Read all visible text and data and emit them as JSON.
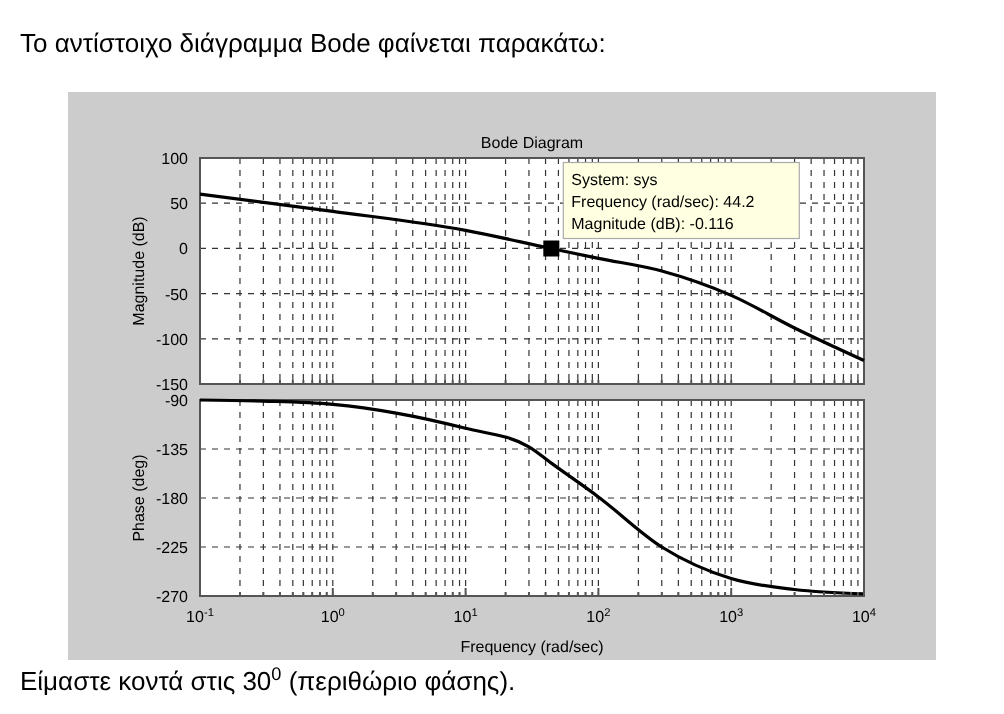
{
  "chart_data": [
    {
      "type": "line",
      "title": "Bode Diagram",
      "ylabel": "Magnitude (dB)",
      "log": "x",
      "grid": true,
      "line_style": "solid",
      "tick_labels": "y",
      "annotations": [
        "Το αντίστοιχο διάγραμμα Bode φαίνεται παρακάτω:",
        {
          "text": "System: sys\nFrequency (rad/sec): 44.2\nMagnitude (dB): -0.116",
          "x": 44.2,
          "y": -0.116
        }
      ],
      "xlim": [
        0.1,
        10000
      ],
      "xticks": [
        {
          "value": 0.1,
          "label": null
        },
        {
          "value": 0.2,
          "label": null
        },
        {
          "value": 0.3,
          "label": null
        },
        {
          "value": 0.4,
          "label": null
        },
        {
          "value": 0.5,
          "label": null
        },
        {
          "value": 0.6,
          "label": null
        },
        {
          "value": 0.7,
          "label": null
        },
        {
          "value": 0.8,
          "label": null
        },
        {
          "value": 0.9,
          "label": null
        },
        {
          "value": 1,
          "label": null
        },
        {
          "value": 2,
          "label": null
        },
        {
          "value": 3,
          "label": null
        },
        {
          "value": 4,
          "label": null
        },
        {
          "value": 5,
          "label": null
        },
        {
          "value": 6,
          "label": null
        },
        {
          "value": 7,
          "label": null
        },
        {
          "value": 8,
          "label": null
        },
        {
          "value": 9,
          "label": null
        },
        {
          "value": 10,
          "label": null
        },
        {
          "value": 20,
          "label": null
        },
        {
          "value": 30,
          "label": null
        },
        {
          "value": 40,
          "label": null
        },
        {
          "value": 50,
          "label": null
        },
        {
          "value": 60,
          "label": null
        },
        {
          "value": 70,
          "label": null
        },
        {
          "value": 80,
          "label": null
        },
        {
          "value": 90,
          "label": null
        },
        {
          "value": 100,
          "label": null
        },
        {
          "value": 200,
          "label": null
        },
        {
          "value": 300,
          "label": null
        },
        {
          "value": 400,
          "label": null
        },
        {
          "value": 500,
          "label": null
        },
        {
          "value": 600,
          "label": null
        },
        {
          "value": 700,
          "label": null
        },
        {
          "value": 800,
          "label": null
        },
        {
          "value": 900,
          "label": null
        },
        {
          "value": 1000,
          "label": null
        },
        {
          "value": 2000,
          "label": null
        },
        {
          "value": 3000,
          "label": null
        },
        {
          "value": 4000,
          "label": null
        },
        {
          "value": 5000,
          "label": null
        },
        {
          "value": 6000,
          "label": null
        },
        {
          "value": 7000,
          "label": null
        },
        {
          "value": 8000,
          "label": null
        },
        {
          "value": 9000,
          "label": null
        },
        {
          "value": 10000,
          "label": null
        }
      ],
      "ylim": [
        -150,
        100
      ],
      "yticks": [
        -150,
        -100,
        -50,
        0,
        50,
        100
      ],
      "series": [
        {
          "color": "#000000",
          "x": [
            0.1,
            1,
            10,
            44.2,
            100,
            300,
            1000,
            3000,
            10000
          ],
          "values": [
            60,
            41,
            20,
            -0.116,
            -11,
            -25,
            -52,
            -88,
            -124
          ]
        },
        {
          "type": "scatter",
          "marker": "square",
          "color": "#000000",
          "x": [
            44.2
          ],
          "values": [
            -0.116
          ]
        }
      ]
    },
    {
      "type": "line",
      "xlabel": "Frequency (rad/sec)",
      "ylabel": "Phase (deg)",
      "log": "x",
      "grid": true,
      "line_style": "solid",
      "annotations": [
        "Είμαστε κοντά στις 30$^{0}$ (περιθώριο φάσης)."
      ],
      "xlim": [
        0.1,
        10000
      ],
      "xticks": [
        {
          "value": 0.1,
          "label": "10$^{-1}$"
        },
        {
          "value": 0.2,
          "label": null
        },
        {
          "value": 0.3,
          "label": null
        },
        {
          "value": 0.4,
          "label": null
        },
        {
          "value": 0.5,
          "label": null
        },
        {
          "value": 0.6,
          "label": null
        },
        {
          "value": 0.7,
          "label": null
        },
        {
          "value": 0.8,
          "label": null
        },
        {
          "value": 0.9,
          "label": null
        },
        {
          "value": 1,
          "label": "10$^{0}$"
        },
        {
          "value": 2,
          "label": null
        },
        {
          "value": 3,
          "label": null
        },
        {
          "value": 4,
          "label": null
        },
        {
          "value": 5,
          "label": null
        },
        {
          "value": 6,
          "label": null
        },
        {
          "value": 7,
          "label": null
        },
        {
          "value": 8,
          "label": null
        },
        {
          "value": 9,
          "label": null
        },
        {
          "value": 10,
          "label": "10$^{1}$"
        },
        {
          "value": 20,
          "label": null
        },
        {
          "value": 30,
          "label": null
        },
        {
          "value": 40,
          "label": null
        },
        {
          "value": 50,
          "label": null
        },
        {
          "value": 60,
          "label": null
        },
        {
          "value": 70,
          "label": null
        },
        {
          "value": 80,
          "label": null
        },
        {
          "value": 90,
          "label": null
        },
        {
          "value": 100,
          "label": "10$^{2}$"
        },
        {
          "value": 200,
          "label": null
        },
        {
          "value": 300,
          "label": null
        },
        {
          "value": 400,
          "label": null
        },
        {
          "value": 500,
          "label": null
        },
        {
          "value": 600,
          "label": null
        },
        {
          "value": 700,
          "label": null
        },
        {
          "value": 800,
          "label": null
        },
        {
          "value": 900,
          "label": null
        },
        {
          "value": 1000,
          "label": "10$^{3}$"
        },
        {
          "value": 2000,
          "label": null
        },
        {
          "value": 3000,
          "label": null
        },
        {
          "value": 4000,
          "label": null
        },
        {
          "value": 5000,
          "label": null
        },
        {
          "value": 6000,
          "label": null
        },
        {
          "value": 7000,
          "label": null
        },
        {
          "value": 8000,
          "label": null
        },
        {
          "value": 9000,
          "label": null
        },
        {
          "value": 10000,
          "label": "10$^{4}$"
        }
      ],
      "ylim": [
        -270,
        -90
      ],
      "yticks": [
        -270,
        -225,
        -180,
        -135,
        -90
      ],
      "series": [
        {
          "color": "#000000",
          "x": [
            0.1,
            0.3,
            1,
            3,
            10,
            30,
            44.2,
            100,
            300,
            1000,
            3000,
            10000
          ],
          "values": [
            -90,
            -91,
            -94,
            -102,
            -116,
            -133,
            -148,
            -179,
            -225,
            -254,
            -264,
            -268
          ]
        }
      ]
    }
  ]
}
